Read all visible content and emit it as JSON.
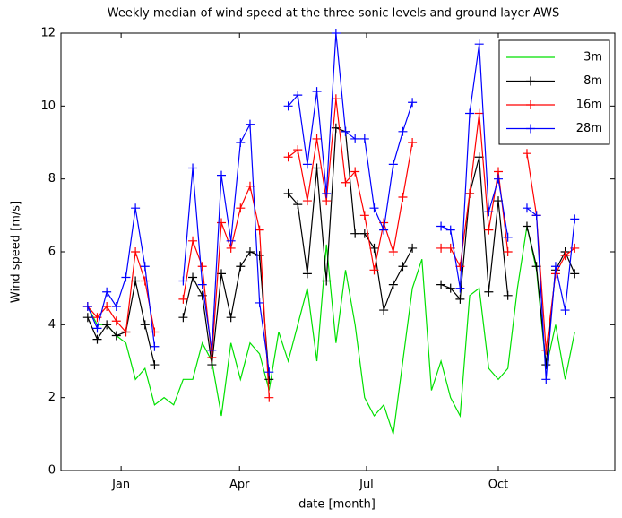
{
  "chart_data": {
    "type": "line",
    "title": "Weekly median of wind speed at the three sonic levels and ground layer AWS",
    "xlabel": "date [month]",
    "ylabel": "Wind speed [m/s]",
    "x": [
      0,
      1,
      2,
      3,
      4,
      5,
      6,
      7,
      8,
      9,
      10,
      11,
      12,
      13,
      14,
      15,
      16,
      17,
      18,
      19,
      20,
      21,
      22,
      23,
      24,
      25,
      26,
      27,
      28,
      29,
      30,
      31,
      32,
      33,
      34,
      35,
      36,
      37,
      38,
      39,
      40,
      41,
      42,
      43,
      44,
      45,
      46,
      47,
      48,
      49,
      50,
      51
    ],
    "xlim": [
      -2.8,
      55.2
    ],
    "xticks": [
      {
        "value": 3.5,
        "label": "Jan"
      },
      {
        "value": 15.9,
        "label": "Apr"
      },
      {
        "value": 29.2,
        "label": "Jul"
      },
      {
        "value": 43,
        "label": "Oct"
      }
    ],
    "ylim": [
      0,
      12
    ],
    "yticks": [
      0,
      2,
      4,
      6,
      8,
      10,
      12
    ],
    "legend": "upper right",
    "series": [
      {
        "name": "3m",
        "color": "#00e000",
        "marker": "none",
        "values": [
          4.5,
          4.0,
          4.0,
          3.7,
          3.5,
          2.5,
          2.8,
          1.8,
          2.0,
          1.8,
          2.5,
          2.5,
          3.5,
          3.0,
          1.5,
          3.5,
          2.5,
          3.5,
          3.2,
          2.2,
          3.8,
          3.0,
          4.0,
          5.0,
          3.0,
          6.2,
          3.5,
          5.5,
          4.0,
          2.0,
          1.5,
          1.8,
          1.0,
          3.0,
          5.0,
          5.8,
          2.2,
          3.0,
          2.0,
          1.5,
          4.8,
          5.0,
          2.8,
          2.5,
          2.8,
          5.0,
          6.7,
          5.5,
          2.8,
          4.0,
          2.5,
          3.8
        ]
      },
      {
        "name": "8m",
        "color": "#000000",
        "marker": "+",
        "values": [
          4.2,
          3.6,
          4.0,
          3.7,
          3.8,
          5.2,
          4.0,
          2.9,
          null,
          null,
          4.2,
          5.3,
          4.8,
          2.9,
          5.4,
          4.2,
          5.6,
          6.0,
          5.9,
          2.5,
          null,
          7.6,
          7.3,
          5.4,
          8.3,
          5.2,
          9.4,
          9.3,
          6.5,
          6.5,
          6.1,
          4.4,
          5.1,
          5.6,
          6.1,
          null,
          null,
          5.1,
          5.0,
          4.7,
          7.6,
          8.6,
          4.9,
          7.4,
          4.8,
          null,
          6.7,
          5.6,
          2.9,
          5.5,
          6.0,
          5.4
        ]
      },
      {
        "name": "16m",
        "color": "#ff0000",
        "marker": "+",
        "values": [
          4.5,
          4.2,
          4.5,
          4.1,
          3.8,
          6.0,
          5.2,
          3.8,
          null,
          null,
          4.7,
          6.3,
          5.6,
          3.1,
          6.8,
          6.1,
          7.2,
          7.8,
          6.6,
          2.0,
          null,
          8.6,
          8.8,
          7.4,
          9.1,
          7.4,
          10.2,
          7.9,
          8.2,
          7.0,
          5.5,
          6.8,
          6.0,
          7.5,
          9.0,
          null,
          null,
          6.1,
          6.1,
          5.6,
          7.6,
          9.8,
          6.6,
          8.2,
          6.0,
          null,
          8.7,
          7.0,
          3.3,
          5.4,
          5.9,
          6.1
        ]
      },
      {
        "name": "28m",
        "color": "#0000ff",
        "marker": "+",
        "values": [
          4.5,
          3.9,
          4.9,
          4.5,
          5.3,
          7.2,
          5.6,
          3.4,
          null,
          null,
          5.2,
          8.3,
          5.1,
          3.3,
          8.1,
          6.3,
          9.0,
          9.5,
          4.6,
          2.7,
          null,
          10.0,
          10.3,
          8.4,
          10.4,
          7.6,
          12.0,
          9.3,
          9.1,
          9.1,
          7.2,
          6.6,
          8.4,
          9.3,
          10.1,
          null,
          null,
          6.7,
          6.6,
          5.0,
          9.8,
          11.7,
          7.1,
          8.0,
          6.4,
          null,
          7.2,
          7.0,
          2.5,
          5.6,
          4.4,
          6.9
        ]
      }
    ]
  }
}
